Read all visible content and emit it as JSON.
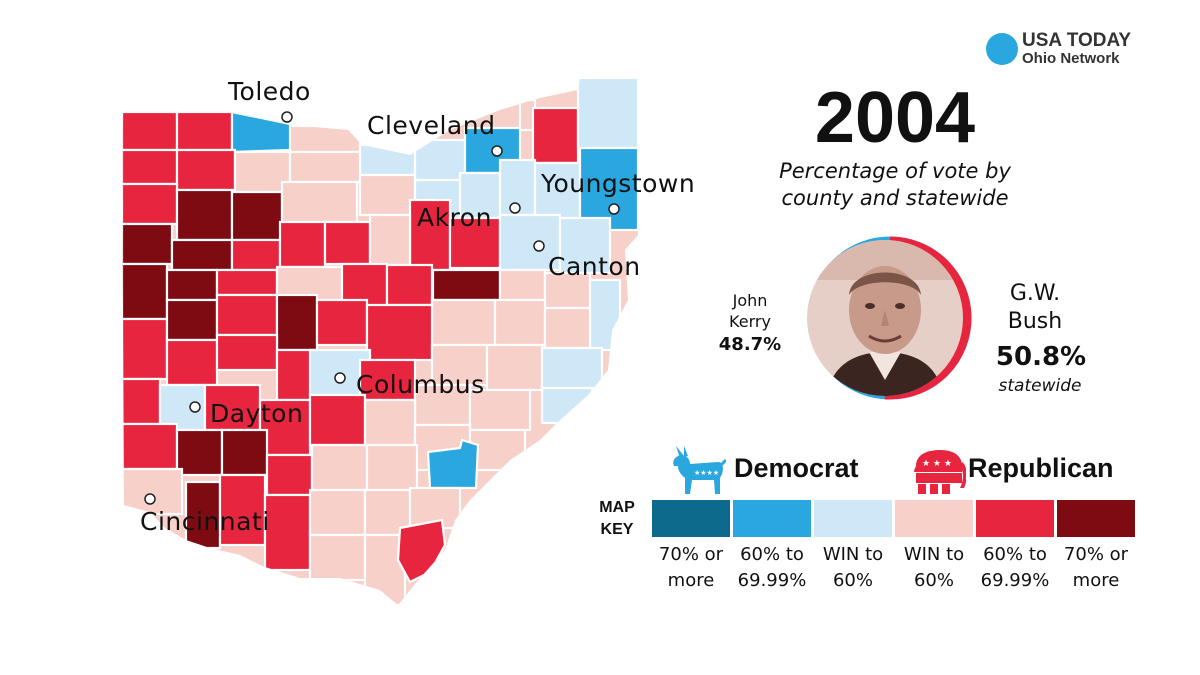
{
  "brand": {
    "title": "USA TODAY",
    "subtitle": "Ohio Network",
    "dot_color": "#2aa7df"
  },
  "year": "2004",
  "subtitle_line1": "Percentage of vote by",
  "subtitle_line2": "county and statewide",
  "candidates": {
    "kerry": {
      "first": "John",
      "last": "Kerry",
      "pct": "48.7%",
      "pct_value": 48.7,
      "color": "#2aa7df"
    },
    "bush": {
      "first": "G.W.",
      "last": "Bush",
      "pct": "50.8%",
      "pct_value": 50.8,
      "note": "statewide",
      "color": "#e8253f"
    }
  },
  "parties": {
    "dem": "Democrat",
    "rep": "Republican"
  },
  "map_key": {
    "title_line1": "MAP",
    "title_line2": "KEY",
    "items": [
      {
        "line1": "70% or",
        "line2": "more",
        "color": "#0e6a8c"
      },
      {
        "line1": "60% to",
        "line2": "69.99%",
        "color": "#2aa7df"
      },
      {
        "line1": "WIN to",
        "line2": "60%",
        "color": "#cfe8f7"
      },
      {
        "line1": "WIN to",
        "line2": "60%",
        "color": "#f8d0ca"
      },
      {
        "line1": "60% to",
        "line2": "69.99%",
        "color": "#e8253f"
      },
      {
        "line1": "70% or",
        "line2": "more",
        "color": "#7e0a12"
      }
    ]
  },
  "cities": [
    {
      "name": "Toledo"
    },
    {
      "name": "Cleveland"
    },
    {
      "name": "Youngstown"
    },
    {
      "name": "Akron"
    },
    {
      "name": "Canton"
    },
    {
      "name": "Columbus"
    },
    {
      "name": "Dayton"
    },
    {
      "name": "Cincinnati"
    }
  ]
}
